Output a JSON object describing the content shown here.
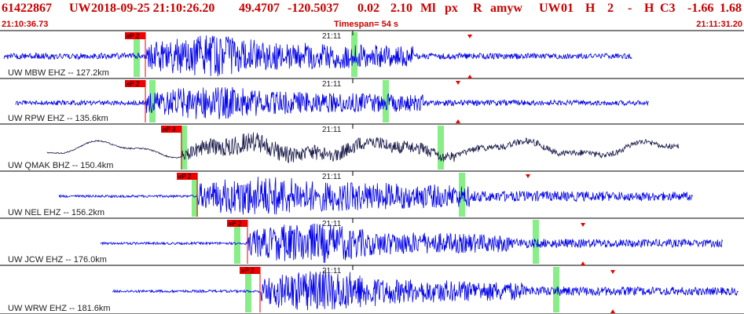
{
  "header": {
    "event_id": "61422867",
    "network": "UW",
    "datetime": "2018-09-25 21:10:26.20",
    "lat": "49.4707",
    "lon": "-120.5037",
    "depth": "0.02",
    "magnitude": "2.10",
    "mag_type": "Ml",
    "event_type": "px",
    "review": "R",
    "author": "amyw",
    "source": "UW",
    "version": "01",
    "quality": "H",
    "phase_count": "2",
    "dash": "-",
    "q2": "H",
    "cls": "C3",
    "v1": "-1.66",
    "v2": "1.68"
  },
  "timebar": {
    "start": "21:10:36.73",
    "timespan": "Timespan=  54 s",
    "end": "21:11:31.20"
  },
  "colors": {
    "header_red": "#cc0000",
    "trace_blue": "#0000ee",
    "trace_dark": "#1a1a4a",
    "pick_red": "#ee0000",
    "window_green": "#88ee88"
  },
  "traces": [
    {
      "label": "UW MBW EHZ -- 127.2km",
      "minute_label": "21:11",
      "pick_label": "eP 2",
      "color": "blue"
    },
    {
      "label": "UW RPW EHZ -- 135.6km",
      "minute_label": "21:11",
      "pick_label": "eP 2",
      "color": "blue"
    },
    {
      "label": "UW QMAK BHZ -- 150.4km",
      "minute_label": "21:11",
      "pick_label": "eP 3",
      "color": "dark"
    },
    {
      "label": "UW NEL EHZ -- 156.2km",
      "minute_label": "21:11",
      "pick_label": "eP 2",
      "color": "blue"
    },
    {
      "label": "UW JCW EHZ -- 176.0km",
      "minute_label": "21:11",
      "pick_label": "eP 2",
      "color": "blue"
    },
    {
      "label": "UW WRW EHZ -- 181.6km",
      "minute_label": "21:11",
      "pick_label": "eP 2",
      "color": "blue"
    }
  ]
}
